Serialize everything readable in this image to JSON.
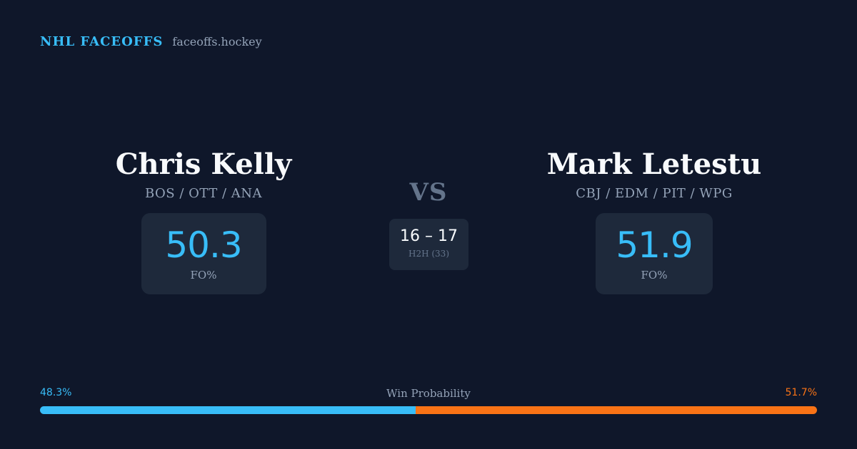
{
  "brand": {
    "title": "NHL FACEOFFS",
    "domain": "faceoffs.hockey"
  },
  "players": {
    "left": {
      "name": "Chris Kelly",
      "teams": "BOS / OTT / ANA",
      "stat_value": "50.3",
      "stat_label": "FO%"
    },
    "right": {
      "name": "Mark Letestu",
      "teams": "CBJ / EDM / PIT / WPG",
      "stat_value": "51.9",
      "stat_label": "FO%"
    }
  },
  "matchup": {
    "vs": "VS",
    "h2h_score": "16 – 17",
    "h2h_label": "H2H (33)"
  },
  "win_probability": {
    "title": "Win Probability",
    "left_label": "48.3%",
    "right_label": "51.7%",
    "left_value": 48.3,
    "right_value": 51.7,
    "left_color": "#38bdf8",
    "right_color": "#f97316"
  }
}
